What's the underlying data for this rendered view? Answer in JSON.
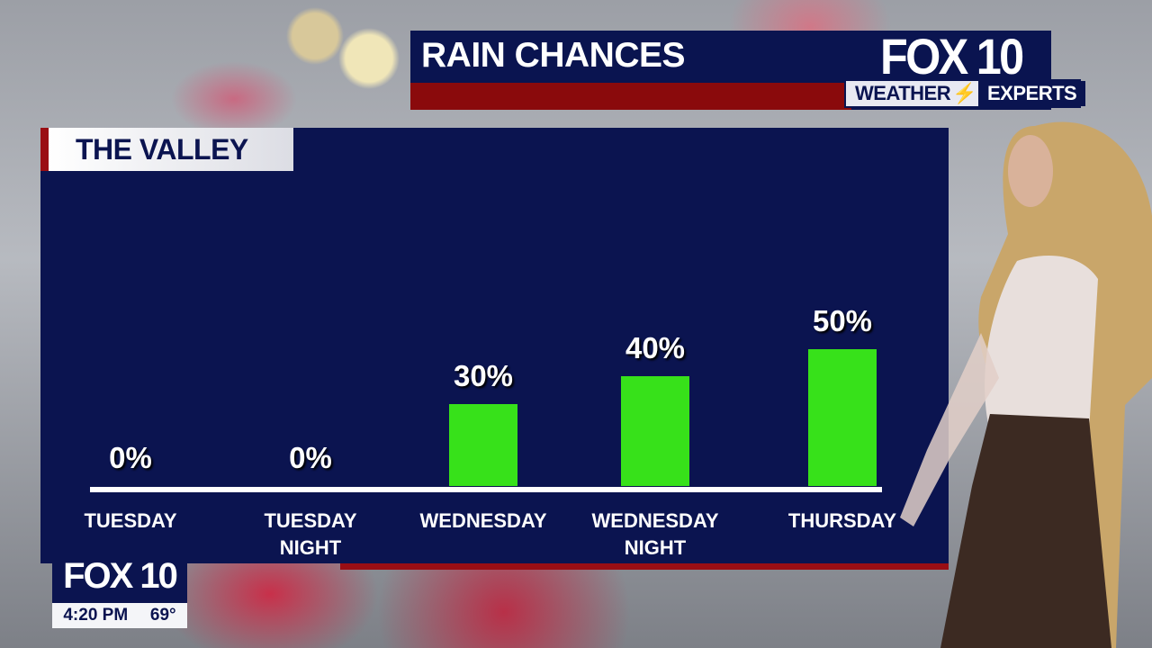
{
  "header": {
    "title": "RAIN CHANCES",
    "logo": "FOX 10",
    "badge_left": "WEATHER",
    "badge_right": "EXPERTS"
  },
  "region": "THE VALLEY",
  "bug": {
    "logo": "FOX 10",
    "time": "4:20 PM",
    "temp": "69°"
  },
  "colors": {
    "panel": "#0b1450",
    "bar": "#37e11a",
    "accent": "#9a0e14"
  },
  "chart_data": {
    "type": "bar",
    "title": "RAIN CHANCES",
    "subtitle": "THE VALLEY",
    "categories": [
      "TUESDAY",
      "TUESDAY NIGHT",
      "WEDNESDAY",
      "WEDNESDAY NIGHT",
      "THURSDAY"
    ],
    "category_lines": [
      [
        "TUESDAY"
      ],
      [
        "TUESDAY",
        "NIGHT"
      ],
      [
        "WEDNESDAY"
      ],
      [
        "WEDNESDAY",
        "NIGHT"
      ],
      [
        "THURSDAY"
      ]
    ],
    "values": [
      0,
      0,
      30,
      40,
      50
    ],
    "labels": [
      "0%",
      "0%",
      "30%",
      "40%",
      "50%"
    ],
    "unit": "%",
    "ylim": [
      0,
      100
    ],
    "grid": false
  }
}
